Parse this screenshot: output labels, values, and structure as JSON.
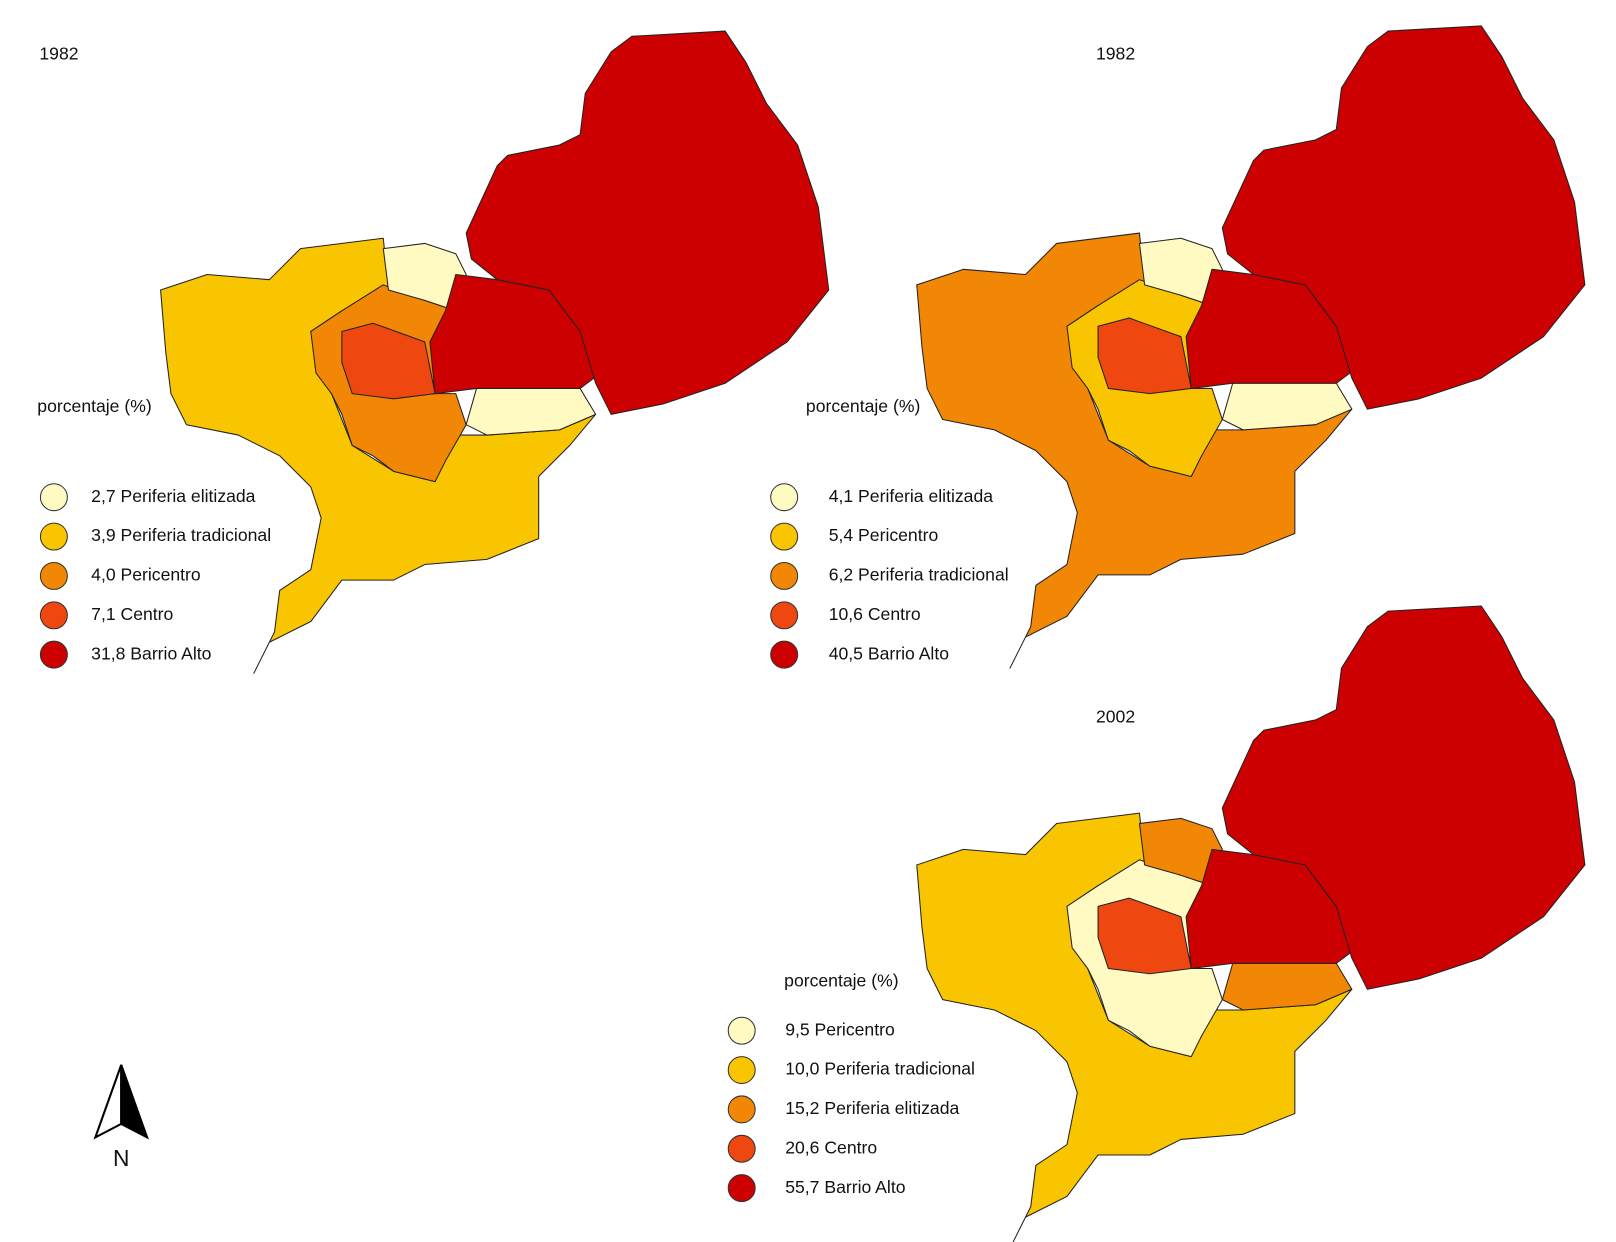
{
  "panels": [
    {
      "year": "1982",
      "legend_title": "porcentaje (%)",
      "legend": [
        {
          "label": "2,7 Periferia elitizada",
          "color": "#fffac2"
        },
        {
          "label": "3,9 Periferia tradicional",
          "color": "#f9c400"
        },
        {
          "label": "4,0 Pericentro",
          "color": "#f28705"
        },
        {
          "label": "7,1 Centro",
          "color": "#ef4710"
        },
        {
          "label": "31,8 Barrio Alto",
          "color": "#cc0000"
        }
      ]
    },
    {
      "year": "1982",
      "legend_title": "porcentaje (%)",
      "legend": [
        {
          "label": "4,1 Periferia elitizada",
          "color": "#fffac2"
        },
        {
          "label": "5,4 Pericentro",
          "color": "#f9c400"
        },
        {
          "label": "6,2 Periferia tradicional",
          "color": "#f28705"
        },
        {
          "label": "10,6 Centro",
          "color": "#ef4710"
        },
        {
          "label": "40,5 Barrio Alto",
          "color": "#cc0000"
        }
      ]
    },
    {
      "year": "2002",
      "legend_title": "porcentaje (%)",
      "legend": [
        {
          "label": "9,5 Pericentro",
          "color": "#fffac2"
        },
        {
          "label": "10,0 Periferia tradicional",
          "color": "#f9c400"
        },
        {
          "label": "15,2 Periferia elitizada",
          "color": "#f28705"
        },
        {
          "label": "20,6 Centro",
          "color": "#ef4710"
        },
        {
          "label": "55,7 Barrio Alto",
          "color": "#cc0000"
        }
      ]
    }
  ],
  "north_label": "N"
}
